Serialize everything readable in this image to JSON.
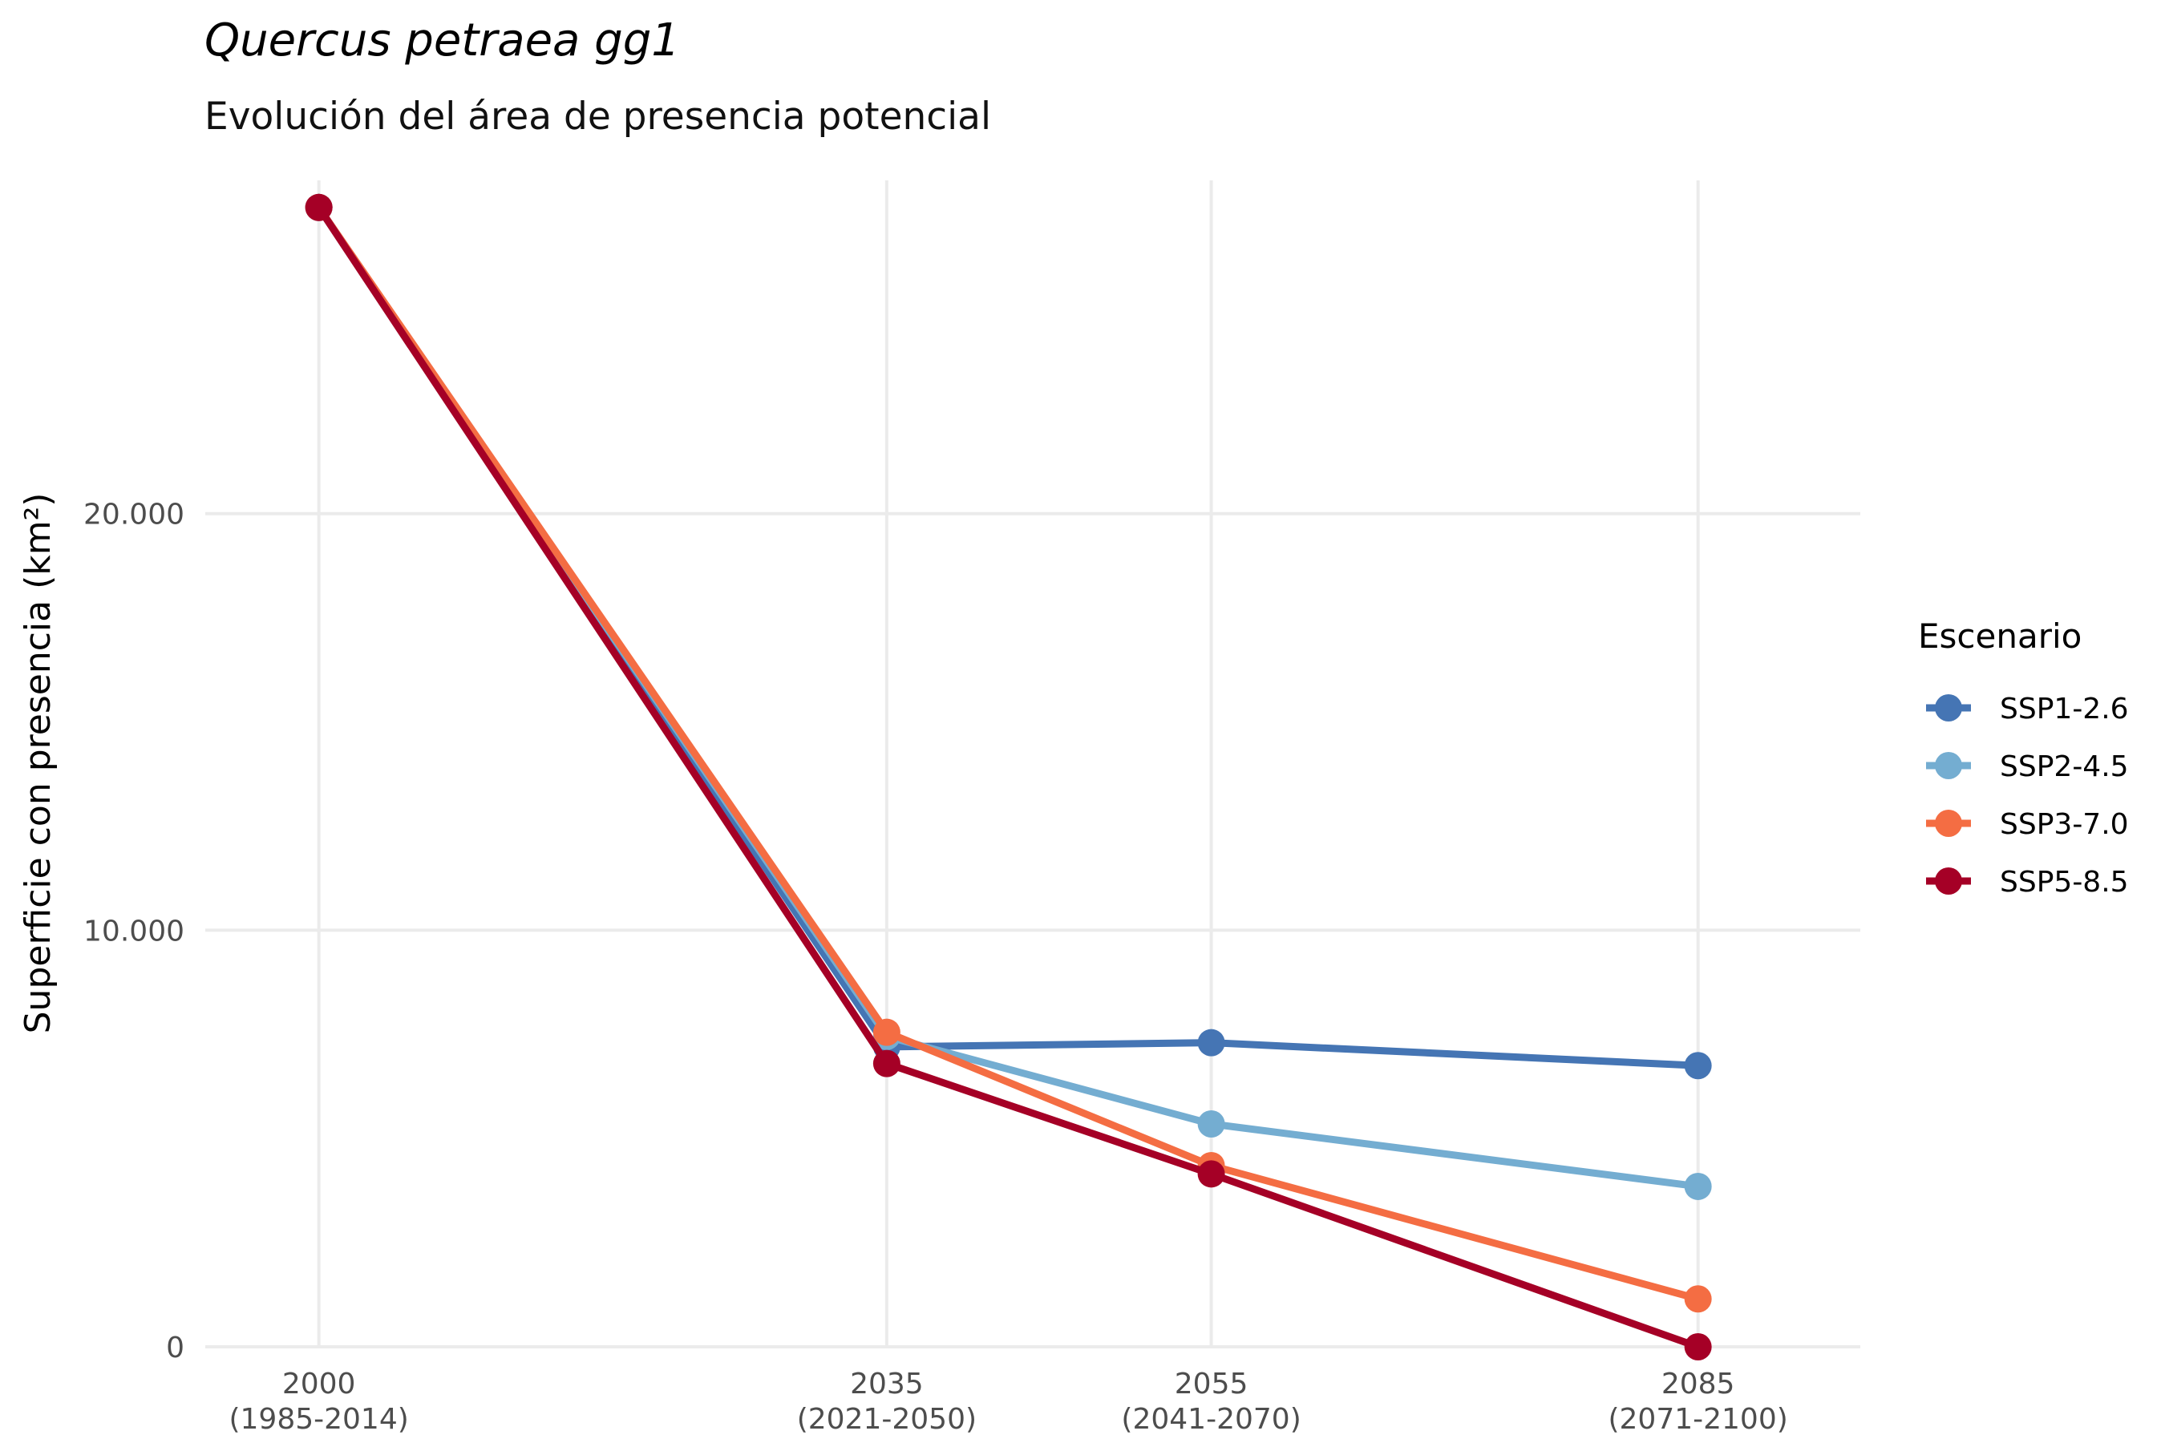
{
  "chart_data": {
    "type": "line",
    "title": "Quercus petraea gg1",
    "subtitle": "Evolución del área de presencia potencial",
    "ylabel": "Superficie con presencia (km²)",
    "x": [
      2000,
      2035,
      2055,
      2085
    ],
    "x_tick_labels": [
      {
        "year": "2000",
        "period": "(1985-2014)"
      },
      {
        "year": "2035",
        "period": "(2021-2050)"
      },
      {
        "year": "2055",
        "period": "(2041-2070)"
      },
      {
        "year": "2085",
        "period": "(2071-2100)"
      }
    ],
    "y_ticks": [
      0,
      10000,
      20000
    ],
    "y_tick_labels": [
      "0",
      "10.000",
      "20.000"
    ],
    "ylim": [
      0,
      28000
    ],
    "xlim": [
      1993,
      2095
    ],
    "grid": true,
    "legend": {
      "title": "Escenario",
      "position": "right"
    },
    "series": [
      {
        "name": "SSP1-2.6",
        "color": "#4575b4",
        "values": [
          27350,
          7200,
          7300,
          6750
        ]
      },
      {
        "name": "SSP2-4.5",
        "color": "#74add1",
        "values": [
          27350,
          7450,
          5350,
          3850
        ]
      },
      {
        "name": "SSP3-7.0",
        "color": "#f46d43",
        "values": [
          27350,
          7550,
          4350,
          1150
        ]
      },
      {
        "name": "SSP5-8.5",
        "color": "#a50026",
        "values": [
          27350,
          6800,
          4150,
          0
        ]
      }
    ]
  }
}
